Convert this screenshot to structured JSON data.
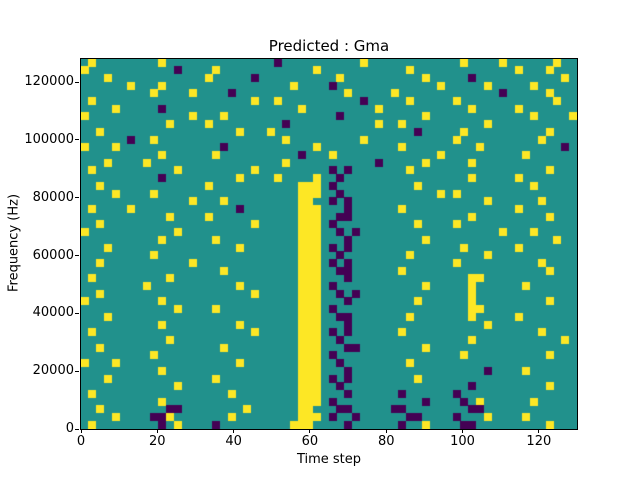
{
  "chart_data": {
    "type": "heatmap",
    "title": "Predicted : Gma",
    "xlabel": "Time step",
    "ylabel": "Frequency (Hz)",
    "xlim": [
      0,
      130
    ],
    "ylim": [
      0,
      128000
    ],
    "x_ticks": [
      0,
      20,
      40,
      60,
      80,
      100,
      120
    ],
    "y_ticks": [
      0,
      20000,
      40000,
      60000,
      80000,
      100000,
      120000
    ],
    "legend": "none",
    "grid_cols": 64,
    "grid_rows": 48,
    "colormap": {
      "mid": "#21918c",
      "low": "#440154",
      "high": "#fde725",
      "figure_bg": "#ffffff"
    },
    "cell_encoding": {
      ".": "mid (teal background)",
      "y": "high (yellow)",
      "p": "low (dark purple)"
    },
    "notes": "Sparse ternary spectrogram mask. Dense yellow vertical band near time step 57-63 spanning 0-85000 Hz; dark purple streaks near time steps 64-72; purple/yellow clusters along the bottom rows.",
    "rows_top_to_bottom": [
      [
        ".y......",
        "..y.....",
        "........",
        ".p......",
        "....y...",
        "........",
        ".y....y.",
        ".....y.."
      ],
      [
        "y.......",
        "....p...",
        ".y......",
        "......y.",
        "........",
        "..y.....",
        "........",
        "y...y..."
      ],
      [
        "...y....",
        "........",
        "y.....p.",
        "........",
        ".y......",
        "....y...",
        "..p.....",
        "......y."
      ],
      [
        "......y.",
        "..y.....",
        "........",
        "...y....",
        "p.......",
        "......y.",
        "....y...",
        "..y....."
      ],
      [
        "........",
        ".y....y.",
        "...p....",
        "........",
        "..y.....",
        "y.......",
        "......p.",
        "....y..."
      ],
      [
        ".y......",
        "........",
        "......y.",
        ".y......",
        "....p...",
        "..y.....",
        "y.......",
        ".....y.."
      ],
      [
        "....y...",
        "..p.....",
        "........",
        "....y...",
        "......y.",
        "........",
        "..y.....",
        "y......."
      ],
      [
        "y.......",
        "......y.",
        "..y.....",
        "........",
        ".p......",
        "....y...",
        "........",
        "..y....y"
      ],
      [
        "........",
        "...y....",
        "y.......",
        "..p.....",
        "......y.",
        ".y......",
        "....y...",
        "........"
      ],
      [
        "..y.....",
        "........",
        "....y...",
        "y.......",
        "........",
        "...p....",
        ".y......",
        "....y..."
      ],
      [
        "......p.",
        ".y......",
        "........",
        "..y.....",
        "....y...",
        "........",
        "y.......",
        "...y...."
      ],
      [
        "y...y...",
        "........",
        "..p.....",
        "......y.",
        "........",
        ".y......",
        "...y....",
        "......p."
      ],
      [
        "........",
        "..y.....",
        ".y......",
        "....p...",
        "y.......",
        "......y.",
        "........",
        ".y......"
      ],
      [
        "...y....",
        "y.......",
        "........",
        "..y.....",
        "......p.",
        "....y...",
        "..y.....",
        "........"
      ],
      [
        ".y......",
        "....y...",
        "......y.",
        "........",
        "p.p.....",
        "..y.....",
        "........",
        "....y..."
      ],
      [
        "........",
        "..p.....",
        "....y...",
        ".y....y.",
        ".p......",
        "........",
        "..y.....",
        "y......."
      ],
      [
        "..y.....",
        "........",
        "y.......",
        "....yyy.",
        "p.......",
        "...y....",
        "........",
        "..y....."
      ],
      [
        "....y...",
        ".y......",
        "........",
        "....yyy.",
        ".p......",
        "......y.",
        "y.......",
        "........"
      ],
      [
        "........",
        "......y.",
        "..y.....",
        "....yy..",
        "p.p.....",
        "........",
        "....y...",
        "...y...."
      ],
      [
        ".y....y.",
        "........",
        "....p...",
        "....yyy.",
        "..p.....",
        ".y......",
        "........",
        "y......."
      ],
      [
        "........",
        "...y....",
        "y.......",
        "....yyy.",
        ".pp.....",
        "........",
        "..y.....",
        "....y..."
      ],
      [
        "..y.....",
        "........",
        "......y.",
        "....yyy.",
        "p.......",
        "...y....",
        "y.......",
        "........"
      ],
      [
        "y.......",
        "....y...",
        "........",
        "....yyy.",
        ".p.p....",
        "........",
        "......y.",
        "..y....."
      ],
      [
        "........",
        "..y.....",
        ".y......",
        "....yyy.",
        "..p.....",
        "....y...",
        "........",
        ".....y.."
      ],
      [
        "...y....",
        "........",
        "....y...",
        "....yyy.",
        "p.p.....",
        "........",
        ".y......",
        "y......."
      ],
      [
        "........",
        ".y......",
        "........",
        "....yyy.",
        ".p......",
        "..y.....",
        "....y...",
        "........"
      ],
      [
        "..y.....",
        "......y.",
        "........",
        "....yyy.",
        "p.p.....",
        "........",
        "y.......",
        "...y...."
      ],
      [
        "........",
        "........",
        "..y.....",
        "....yyy.",
        ".pp.....",
        ".y......",
        "........",
        "....y..."
      ],
      [
        ".y......",
        "...y....",
        "........",
        "....yyy.",
        "..p.....",
        "........",
        "..yy....",
        "........"
      ],
      [
        "........",
        "y.......",
        "....y...",
        "....yyy.",
        "p.......",
        "....y...",
        "..y.....",
        ".y......"
      ],
      [
        "..y.....",
        "........",
        "......y.",
        "....yyy.",
        ".p.p....",
        "........",
        "..y.....",
        "........"
      ],
      [
        "y.......",
        "..y.....",
        "........",
        "....yyy.",
        "..p.....",
        "...y....",
        "..y.....",
        "....y..."
      ],
      [
        "........",
        "....y...",
        ".y......",
        "....yyy.",
        "p.......",
        "........",
        "..yy....",
        "........"
      ],
      [
        "...y....",
        "........",
        "........",
        "....yyy.",
        ".pp.....",
        "..y.....",
        "..y.....",
        "y......."
      ],
      [
        "........",
        "..y.....",
        "....y...",
        "....yyy.",
        "..p.....",
        "........",
        "....y...",
        "........"
      ],
      [
        ".y......",
        "........",
        "......y.",
        "....yyy.",
        "p.p.....",
        ".y......",
        "........",
        "...y...."
      ],
      [
        "........",
        "...y....",
        "........",
        "....yyy.",
        ".p......",
        "........",
        "..y.....",
        "......y."
      ],
      [
        "..y.....",
        "........",
        "..y.....",
        "....yyy.",
        "..pp....",
        "....y...",
        "........",
        "........"
      ],
      [
        "........",
        ".y......",
        "........",
        "....yyy.",
        "p.......",
        "........",
        ".y......",
        "....y..."
      ],
      [
        "y...y...",
        "........",
        "....y...",
        "....yyy.",
        ".p......",
        "..y.....",
        "........",
        "........"
      ],
      [
        "........",
        "..y.....",
        "........",
        "....yyy.",
        "..p.....",
        "........",
        "....p...",
        ".y......"
      ],
      [
        "...y....",
        "........",
        ".y......",
        "....yyy.",
        "p.p.....",
        "...y....",
        "........",
        "........"
      ],
      [
        "........",
        "....y...",
        "........",
        "....yyy.",
        ".p......",
        "........",
        "..p.....",
        "....y..."
      ],
      [
        ".y......",
        "........",
        "...y....",
        "....yyy.",
        "..p.....",
        ".p......",
        "p.......",
        "........"
      ],
      [
        "........",
        "..y.....",
        "........",
        "....yyy.",
        "p.......",
        "....p...",
        ".p.y....",
        "..y....."
      ],
      [
        "..y.....",
        "...pp...",
        ".....y..",
        "....yy..",
        ".pp.....",
        "pp......",
        "..pp....",
        "........"
      ],
      [
        "....y...",
        ".ppy....",
        "...y....",
        "....yyy.",
        "p..p....",
        "..pp....",
        "p...y...",
        ".y......"
      ],
      [
        ".y......",
        "..p.y...",
        ".p......",
        "...yyy..",
        "..p.....",
        ".p..y...",
        ".pp.....",
        "....y..."
      ]
    ]
  }
}
